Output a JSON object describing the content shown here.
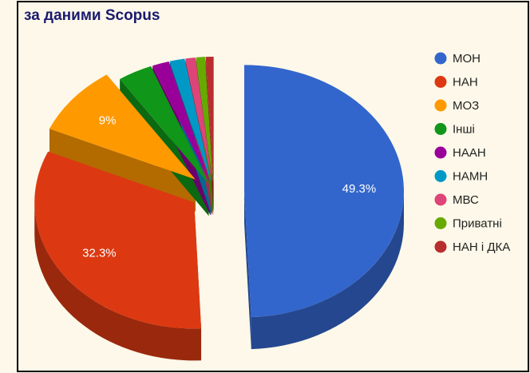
{
  "chart_data": {
    "type": "pie",
    "title": "за даними Scopus",
    "categories": [
      "МОН",
      "НАН",
      "МОЗ",
      "Інші",
      "НААН",
      "НАМН",
      "МВС",
      "Приватні",
      "НАН і ДКА"
    ],
    "values": [
      49.3,
      32.3,
      9,
      3.5,
      1.7,
      1.5,
      1.0,
      0.9,
      0.8
    ],
    "value_labels": [
      "49.3%",
      "32.3%",
      "9%",
      null,
      null,
      null,
      null,
      null,
      null
    ],
    "colors": [
      "#3366cc",
      "#dc3912",
      "#ff9900",
      "#109618",
      "#990099",
      "#0099c6",
      "#dd4477",
      "#66aa00",
      "#b82e2e"
    ],
    "legend": "right"
  }
}
